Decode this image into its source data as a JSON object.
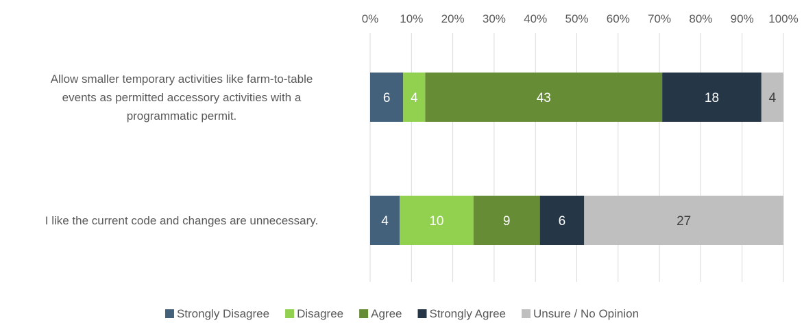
{
  "chart_data": {
    "type": "bar",
    "orientation": "horizontal",
    "stacked": "percent",
    "categories": [
      "Allow smaller temporary activities like farm-to-table events as permitted accessory activities with a programmatic permit.",
      "I like the current code and changes are unnecessary."
    ],
    "category_lines": [
      [
        "Allow smaller temporary activities like farm-to-table",
        "events as permitted accessory activities with a",
        "programmatic permit."
      ],
      [
        "I like the current code and changes are unnecessary."
      ]
    ],
    "series": [
      {
        "name": "Strongly Disagree",
        "values": [
          6,
          4
        ],
        "color": "#44617b",
        "label_color": "#ffffff"
      },
      {
        "name": "Disagree",
        "values": [
          4,
          10
        ],
        "color": "#92d050",
        "label_color": "#ffffff"
      },
      {
        "name": "Agree",
        "values": [
          43,
          9
        ],
        "color": "#668c35",
        "label_color": "#ffffff"
      },
      {
        "name": "Strongly Agree",
        "values": [
          18,
          6
        ],
        "color": "#253746",
        "label_color": "#ffffff"
      },
      {
        "name": "Unsure / No Opinion",
        "values": [
          4,
          27
        ],
        "color": "#bfbfbf",
        "label_color": "#404040"
      }
    ],
    "x_ticks": [
      "0%",
      "10%",
      "20%",
      "30%",
      "40%",
      "50%",
      "60%",
      "70%",
      "80%",
      "90%",
      "100%"
    ],
    "xlim": [
      0,
      100
    ],
    "title": "",
    "xlabel": "",
    "ylabel": "",
    "grid": true,
    "axis_position": "top",
    "legend_position": "bottom"
  }
}
